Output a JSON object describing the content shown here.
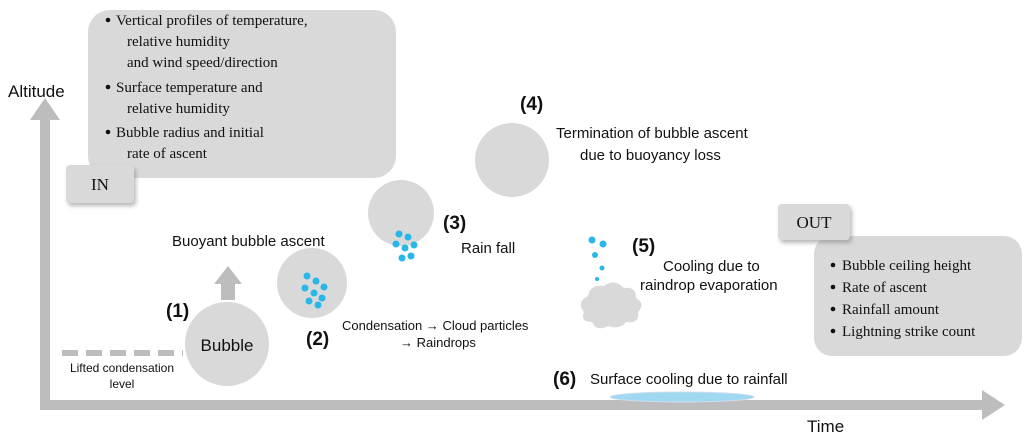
{
  "axes": {
    "y_label": "Altitude",
    "x_label": "Time"
  },
  "inputs": {
    "label": "IN",
    "items": [
      [
        "Vertical profiles of temperature,",
        "relative humidity",
        "and wind speed/direction"
      ],
      [
        "Surface temperature and",
        "relative humidity"
      ],
      [
        "Bubble radius and initial",
        "rate of ascent"
      ]
    ]
  },
  "outputs": {
    "label": "OUT",
    "items": [
      "Bubble ceiling height",
      "Rate of ascent",
      "Rainfall amount",
      "Lightning strike count"
    ]
  },
  "lifted_condensation_level": [
    "Lifted condensation",
    "level"
  ],
  "stages": [
    {
      "number": "(1)",
      "lines": [
        "Bubble",
        "Buoyant bubble ascent"
      ]
    },
    {
      "number": "(2)",
      "lines": [
        "Condensation → Cloud particles",
        "→ Raindrops"
      ]
    },
    {
      "number": "(3)",
      "lines": [
        "Rain fall"
      ]
    },
    {
      "number": "(4)",
      "lines": [
        "Termination of bubble ascent",
        "due to  buoyancy loss"
      ]
    },
    {
      "number": "(5)",
      "lines": [
        "Cooling due to",
        "raindrop evaporation"
      ]
    },
    {
      "number": "(6)",
      "lines": [
        "Surface cooling due to rainfall"
      ]
    }
  ]
}
